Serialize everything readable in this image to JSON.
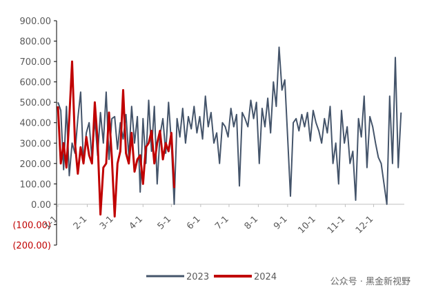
{
  "chart_data": {
    "type": "line",
    "xlim": [
      1,
      366
    ],
    "ylim": [
      -200,
      900
    ],
    "xticks": [
      {
        "value": 1,
        "label": "1-1"
      },
      {
        "value": 32,
        "label": "2-1"
      },
      {
        "value": 60,
        "label": "3-1"
      },
      {
        "value": 91,
        "label": "4-1"
      },
      {
        "value": 121,
        "label": "5-1"
      },
      {
        "value": 152,
        "label": "6-1"
      },
      {
        "value": 182,
        "label": "7-1"
      },
      {
        "value": 213,
        "label": "8-1"
      },
      {
        "value": 244,
        "label": "9-1"
      },
      {
        "value": 274,
        "label": "10-1"
      },
      {
        "value": 305,
        "label": "11-1"
      },
      {
        "value": 335,
        "label": "12-1"
      }
    ],
    "yticks": [
      {
        "value": -200,
        "label": "(200.00)"
      },
      {
        "value": -100,
        "label": "(100.00)"
      },
      {
        "value": 0,
        "label": "0.00"
      },
      {
        "value": 100,
        "label": "100.00"
      },
      {
        "value": 200,
        "label": "200.00"
      },
      {
        "value": 300,
        "label": "300.00"
      },
      {
        "value": 400,
        "label": "400.00"
      },
      {
        "value": 500,
        "label": "500.00"
      },
      {
        "value": 600,
        "label": "600.00"
      },
      {
        "value": 700,
        "label": "700.00"
      },
      {
        "value": 800,
        "label": "800.00"
      },
      {
        "value": 900,
        "label": "900.00"
      }
    ],
    "negative_tick_color": "#c00000",
    "series": [
      {
        "name": "2023",
        "color": "#44546a",
        "x": [
          1,
          4,
          7,
          10,
          13,
          16,
          19,
          22,
          25,
          28,
          31,
          34,
          37,
          40,
          43,
          46,
          49,
          52,
          55,
          58,
          61,
          64,
          67,
          70,
          73,
          76,
          79,
          82,
          85,
          88,
          91,
          94,
          97,
          100,
          103,
          106,
          109,
          112,
          115,
          118,
          121,
          124,
          127,
          130,
          133,
          136,
          139,
          142,
          145,
          148,
          151,
          154,
          157,
          160,
          163,
          166,
          169,
          172,
          175,
          178,
          181,
          184,
          187,
          190,
          193,
          196,
          199,
          202,
          205,
          208,
          211,
          214,
          217,
          220,
          223,
          226,
          229,
          232,
          235,
          238,
          241,
          244,
          247,
          250,
          253,
          256,
          259,
          262,
          265,
          268,
          271,
          274,
          277,
          280,
          283,
          286,
          289,
          292,
          295,
          298,
          301,
          304,
          307,
          310,
          313,
          316,
          319,
          322,
          325,
          328,
          331,
          334,
          337,
          340,
          343,
          346,
          349,
          352,
          355,
          358,
          361,
          364
        ],
        "values": [
          500,
          460,
          170,
          480,
          140,
          300,
          250,
          420,
          550,
          200,
          350,
          400,
          220,
          420,
          240,
          450,
          300,
          550,
          220,
          420,
          430,
          270,
          400,
          320,
          440,
          230,
          480,
          300,
          430,
          60,
          420,
          200,
          510,
          260,
          480,
          100,
          340,
          420,
          250,
          500,
          300,
          0,
          420,
          330,
          470,
          300,
          430,
          370,
          480,
          350,
          430,
          320,
          530,
          380,
          450,
          300,
          350,
          200,
          400,
          380,
          330,
          470,
          380,
          440,
          90,
          450,
          420,
          380,
          510,
          420,
          500,
          200,
          470,
          380,
          520,
          350,
          600,
          480,
          770,
          560,
          610,
          330,
          40,
          400,
          420,
          360,
          440,
          380,
          450,
          310,
          460,
          400,
          360,
          300,
          420,
          350,
          480,
          200,
          300,
          100,
          460,
          300,
          380,
          200,
          260,
          20,
          420,
          330,
          530,
          180,
          430,
          380,
          300,
          230,
          200,
          100,
          0,
          530,
          200,
          720,
          180,
          450
        ]
      },
      {
        "name": "2024",
        "color": "#c00000",
        "x": [
          1,
          4,
          7,
          10,
          13,
          16,
          19,
          22,
          25,
          28,
          31,
          34,
          37,
          40,
          43,
          46,
          49,
          52,
          55,
          58,
          61,
          64,
          67,
          70,
          73,
          76,
          79,
          82,
          85,
          88,
          91,
          94,
          97,
          100,
          103,
          106,
          109,
          112,
          115,
          118,
          121,
          124
        ],
        "values": [
          480,
          200,
          300,
          180,
          420,
          700,
          300,
          150,
          280,
          200,
          330,
          240,
          200,
          500,
          310,
          -50,
          180,
          200,
          450,
          230,
          -60,
          200,
          260,
          560,
          250,
          200,
          350,
          160,
          220,
          240,
          100,
          280,
          300,
          360,
          200,
          300,
          360,
          220,
          300,
          260,
          350,
          80
        ]
      }
    ],
    "watermark": "公众号 · 黑金新视野"
  }
}
